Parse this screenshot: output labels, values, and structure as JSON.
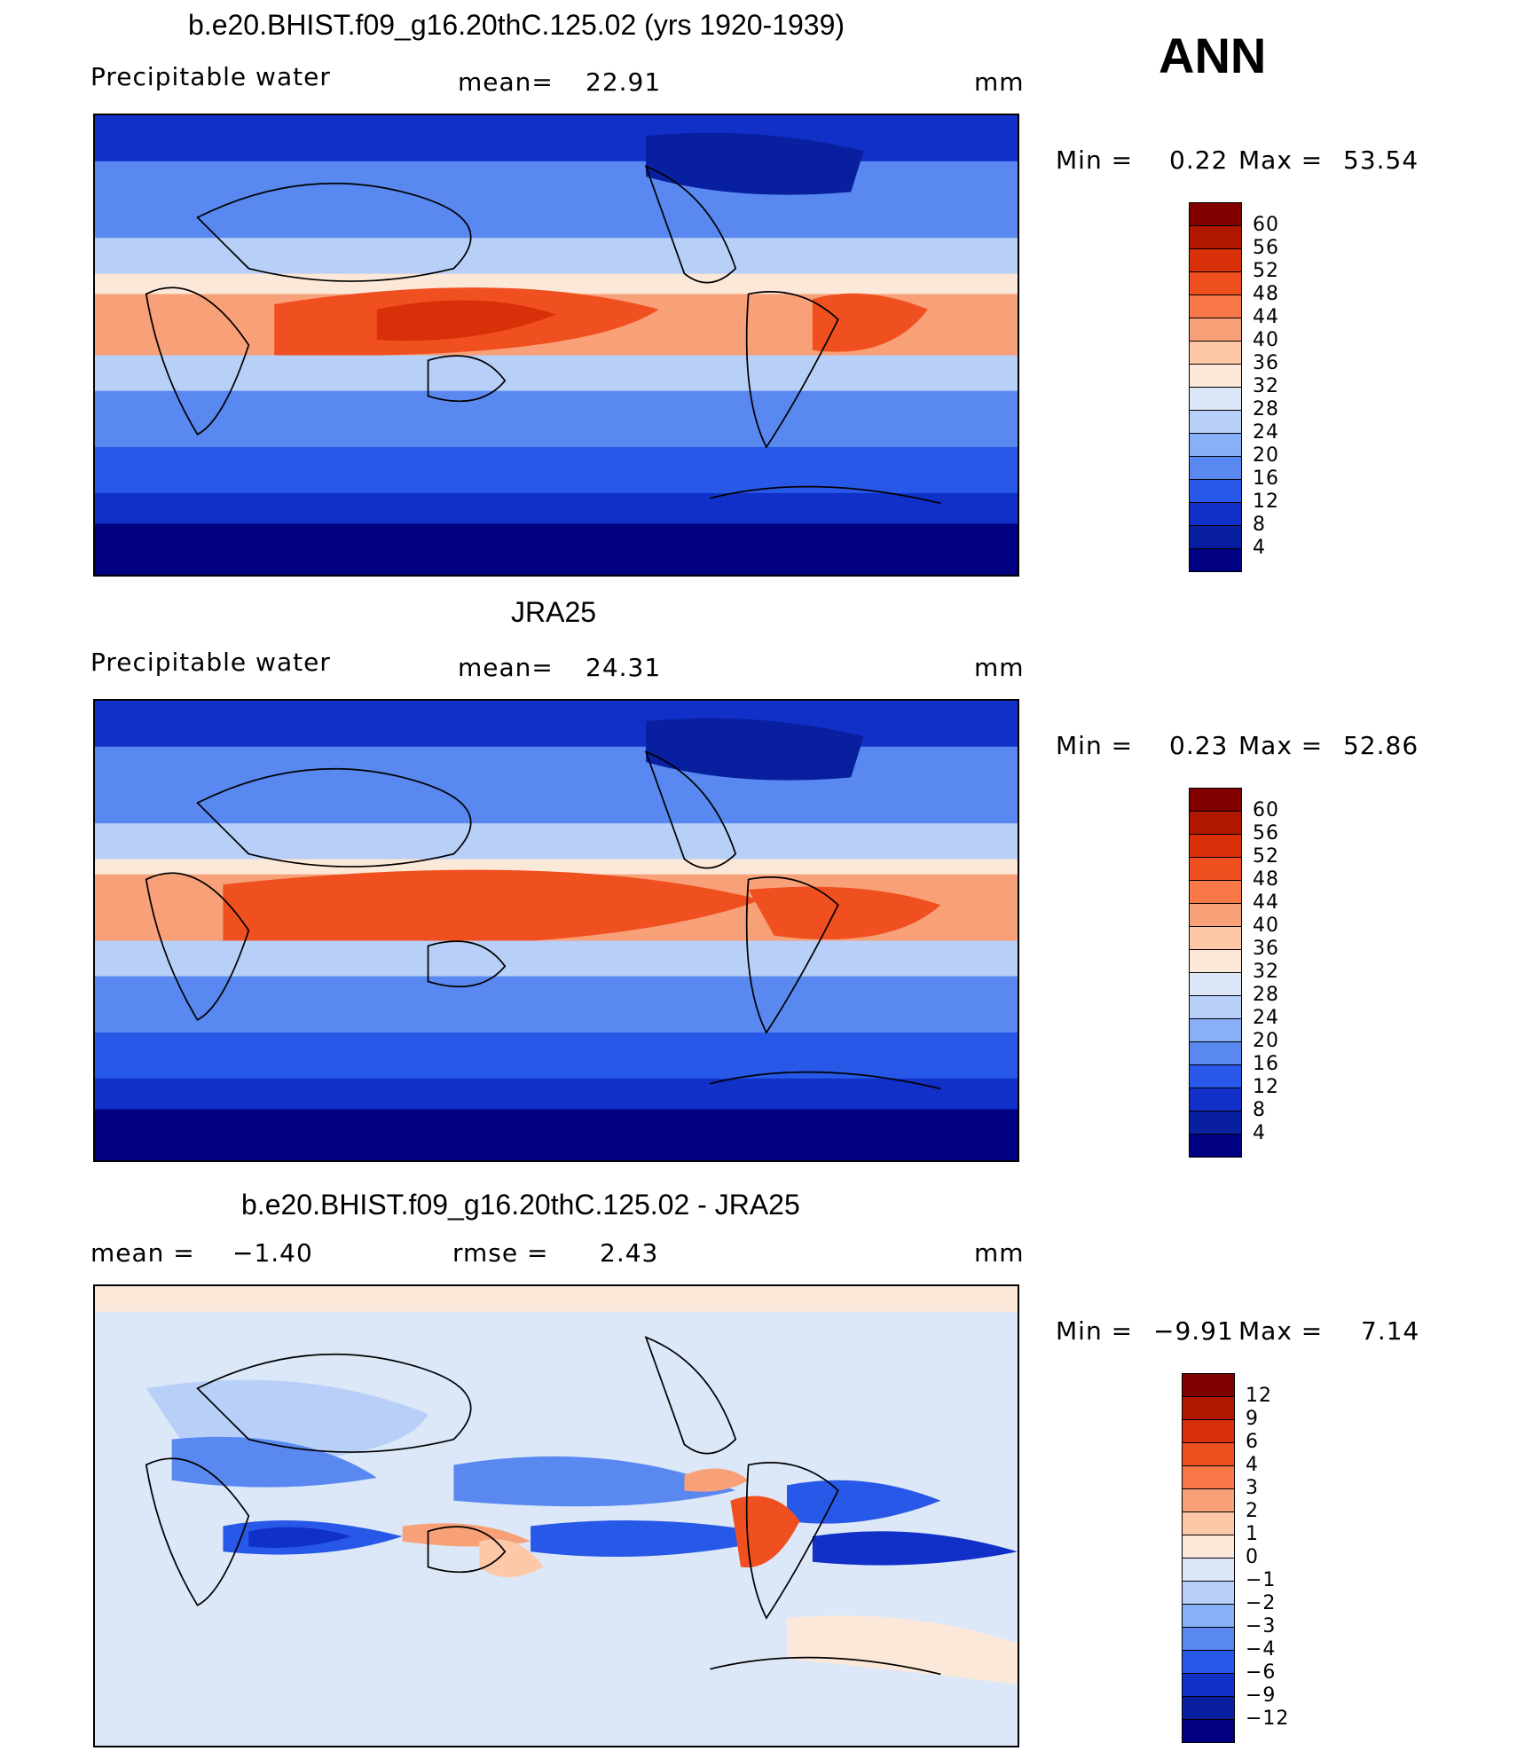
{
  "season": "ANN",
  "colorscale_abs": {
    "labels": [
      "60",
      "56",
      "52",
      "48",
      "44",
      "40",
      "36",
      "32",
      "28",
      "24",
      "20",
      "16",
      "12",
      "8",
      "4"
    ],
    "colors": [
      "#800000",
      "#B01800",
      "#D83008",
      "#F05020",
      "#F87848",
      "#F8A078",
      "#FCC8A8",
      "#FCE8D8",
      "#DCE8F8",
      "#B8D0F8",
      "#88B0F8",
      "#5888F0",
      "#2858E8",
      "#1030C8",
      "#0820A0",
      "#000080"
    ]
  },
  "colorscale_diff": {
    "labels": [
      "12",
      "9",
      "6",
      "4",
      "3",
      "2",
      "1",
      "0",
      "−1",
      "−2",
      "−3",
      "−4",
      "−6",
      "−9",
      "−12"
    ],
    "colors": [
      "#800000",
      "#B01800",
      "#D83008",
      "#F05020",
      "#F87848",
      "#F8A078",
      "#FCC8A8",
      "#FCE8D8",
      "#DCE8F8",
      "#B8D0F8",
      "#88B0F8",
      "#5888F0",
      "#2858E8",
      "#1030C8",
      "#0820A0",
      "#000080"
    ]
  },
  "panels": [
    {
      "title": "b.e20.BHIST.f09_g16.20thC.125.02 (yrs 1920-1939)",
      "variable": "Precipitable  water",
      "stat_label": "mean=",
      "stat_value": "22.91",
      "units": "mm",
      "min_label": "Min  =",
      "min_value": "0.22",
      "max_label": "Max  =",
      "max_value": "53.54"
    },
    {
      "title": "JRA25",
      "variable": "Precipitable  water",
      "stat_label": "mean=",
      "stat_value": "24.31",
      "units": "mm",
      "min_label": "Min  =",
      "min_value": "0.23",
      "max_label": "Max  =",
      "max_value": "52.86"
    },
    {
      "title": "b.e20.BHIST.f09_g16.20thC.125.02 - JRA25",
      "mean_label": "mean  =",
      "mean_value": "−1.40",
      "rmse_label": "rmse  =",
      "rmse_value": "2.43",
      "units": "mm",
      "min_label": "Min  =",
      "min_value": "−9.91",
      "max_label": "Max  =",
      "max_value": "7.14"
    }
  ]
}
